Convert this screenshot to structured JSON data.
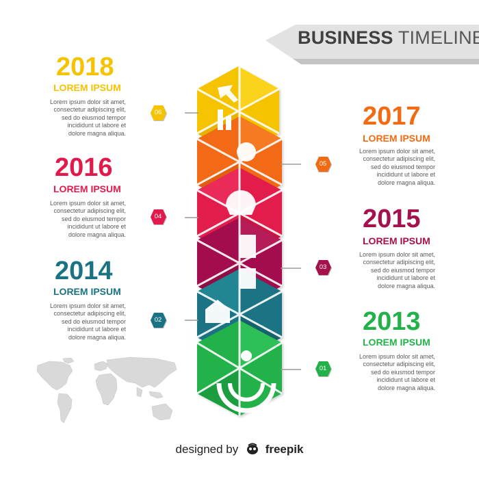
{
  "header": {
    "title_bold": "BUSINESS",
    "title_light": "TIMELINE"
  },
  "milestones": [
    {
      "year": "2018",
      "subtitle": "LOREM IPSUM",
      "badge": "06",
      "color": "#f5c300",
      "text": [
        "Lorem ipsum dolor sit amet,",
        "consectetur adipiscing elit,",
        "sed do eiusmod tempor",
        "incididunt ut labore et",
        "dolore magna aliqua."
      ]
    },
    {
      "year": "2017",
      "subtitle": "LOREM IPSUM",
      "badge": "05",
      "color": "#f26b12",
      "text": [
        "Lorem ipsum dolor sit amet,",
        "consectetur adipiscing elit,",
        "sed do eiusmod tempor",
        "incididunt ut labore et",
        "dolore magna aliqua."
      ]
    },
    {
      "year": "2016",
      "subtitle": "LOREM IPSUM",
      "badge": "04",
      "color": "#e21a4b",
      "text": [
        "Lorem ipsum dolor sit amet,",
        "consectetur adipiscing elit,",
        "sed do eiusmod tempor",
        "incididunt ut labore et",
        "dolore magna aliqua."
      ]
    },
    {
      "year": "2015",
      "subtitle": "LOREM IPSUM",
      "badge": "03",
      "color": "#a4114d",
      "text": [
        "Lorem ipsum dolor sit amet,",
        "consectetur adipiscing elit,",
        "sed do eiusmod tempor",
        "incididunt ut labore et",
        "dolore magna aliqua."
      ]
    },
    {
      "year": "2014",
      "subtitle": "LOREM IPSUM",
      "badge": "02",
      "color": "#1a7383",
      "text": [
        "Lorem ipsum dolor sit amet,",
        "consectetur adipiscing elit,",
        "sed do eiusmod tempor",
        "incididunt ut labore et",
        "dolore magna aliqua."
      ]
    },
    {
      "year": "2013",
      "subtitle": "LOREM IPSUM",
      "badge": "01",
      "color": "#23b24a",
      "text": [
        "Lorem ipsum dolor sit amet,",
        "consectetur adipiscing elit,",
        "sed do eiusmod tempor",
        "incididunt ut labore et",
        "dolore magna aliqua."
      ]
    }
  ],
  "footer": {
    "prefix": "designed by",
    "brand": "freepik"
  }
}
